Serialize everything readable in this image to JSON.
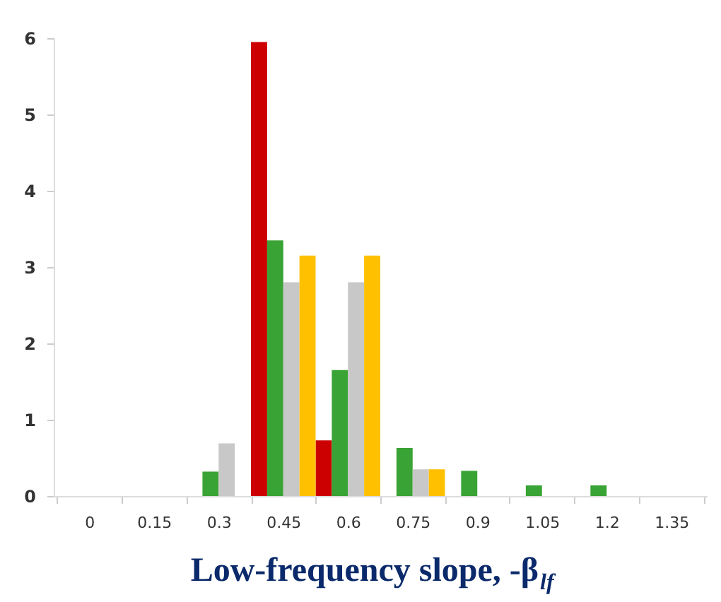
{
  "chart_data": {
    "type": "bar",
    "xlabel": "Low-frequency slope, -β$_{lf}$",
    "categories": [
      "0",
      "0.15",
      "0.3",
      "0.45",
      "0.6",
      "0.75",
      "0.9",
      "1.05",
      "1.2",
      "1.35"
    ],
    "series": [
      {
        "color": "#cc0000",
        "values": [
          null,
          null,
          null,
          5.95,
          0.73,
          null,
          null,
          null,
          null,
          null
        ]
      },
      {
        "color": "#3aa335",
        "values": [
          null,
          null,
          0.32,
          3.35,
          1.65,
          0.63,
          0.33,
          0.14,
          0.14,
          null
        ]
      },
      {
        "color": "#c8c8c8",
        "values": [
          null,
          null,
          0.69,
          2.8,
          2.8,
          0.35,
          null,
          null,
          null,
          null
        ]
      },
      {
        "color": "#ffc000",
        "values": [
          null,
          null,
          null,
          3.15,
          3.15,
          0.35,
          null,
          null,
          null,
          null
        ]
      }
    ],
    "ylim": [
      0,
      6
    ],
    "yticks": [
      0,
      1,
      2,
      3,
      4,
      5,
      6
    ],
    "grid": false,
    "legend": false
  }
}
